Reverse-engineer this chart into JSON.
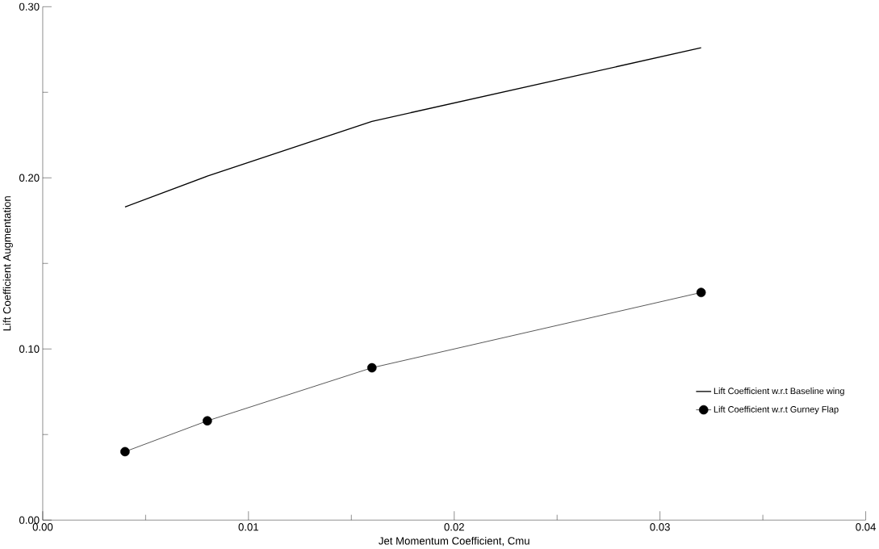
{
  "chart_data": {
    "type": "line",
    "xlabel": "Jet Momentum Coefficient, Cmu",
    "ylabel": "Lift Coefficient Augmentation",
    "xlim": [
      0,
      0.04
    ],
    "ylim": [
      0,
      0.3
    ],
    "xticks": [
      {
        "value": 0,
        "label": "0.00"
      },
      {
        "value": 0.01,
        "label": "0.01"
      },
      {
        "value": 0.02,
        "label": "0.02"
      },
      {
        "value": 0.03,
        "label": "0.03"
      },
      {
        "value": 0.04,
        "label": "0.04"
      }
    ],
    "yticks": [
      {
        "value": 0,
        "label": "0.00"
      },
      {
        "value": 0.1,
        "label": "0.10"
      },
      {
        "value": 0.2,
        "label": "0.20"
      },
      {
        "value": 0.3,
        "label": "0.30"
      }
    ],
    "x": [
      0.004,
      0.008,
      0.016,
      0.032
    ],
    "series": [
      {
        "name": "Lift Coefficient w.r.t Baseline wing",
        "color": "#000000",
        "values": [
          0.183,
          0.201,
          0.233,
          0.276
        ],
        "marker": "none"
      },
      {
        "name": "Lift Coefficient w.r.t Gurney Flap",
        "color": "#000000",
        "values": [
          0.04,
          0.058,
          0.089,
          0.133
        ],
        "marker": "circle"
      }
    ],
    "legend": "bottom right",
    "grid": false,
    "line_style": "solid"
  }
}
